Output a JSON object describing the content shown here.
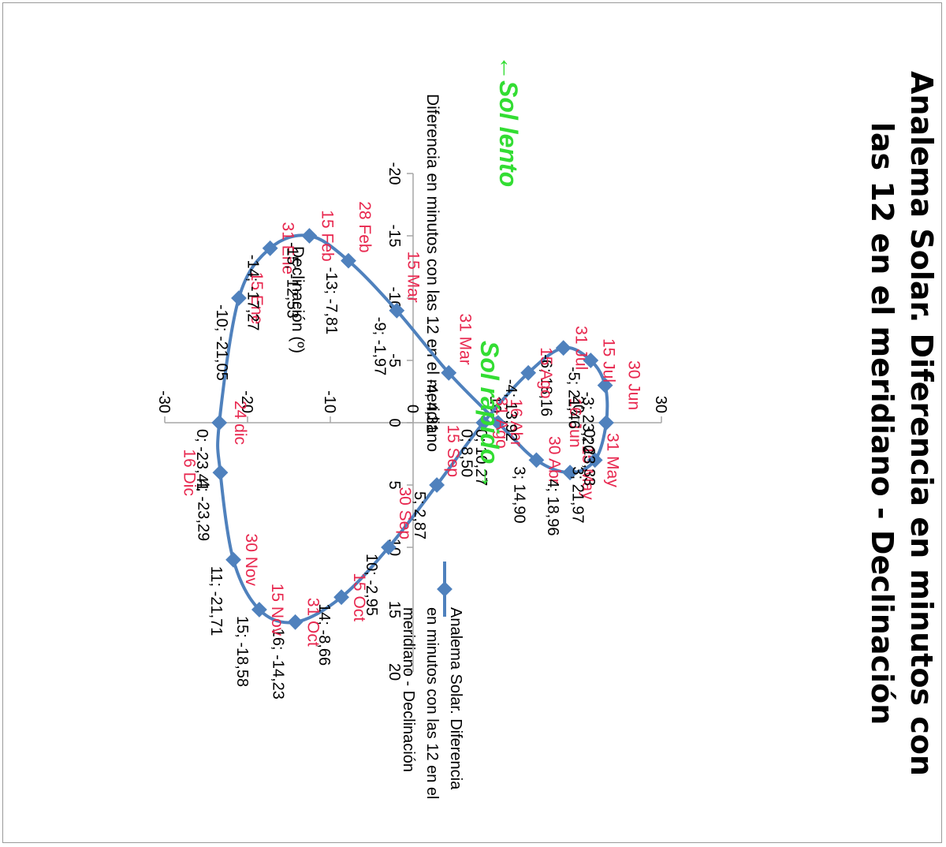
{
  "chart_data": {
    "type": "scatter",
    "title_lines": [
      "Analema Solar. Diferencia en minutos con",
      "las 12 en el meridiano - Declinación"
    ],
    "xlabel": "Diferencia en minutos con las 12 en el meridiano",
    "ylabel": "Declinación (º)",
    "xlim": [
      -20,
      20
    ],
    "ylim": [
      -30,
      30
    ],
    "xticks": [
      "-20",
      "-15",
      "-10",
      "-5",
      "0",
      "5",
      "10",
      "15",
      "20"
    ],
    "yticks": [
      "-30",
      "-20",
      "-10",
      "0",
      "10",
      "20",
      "30"
    ],
    "series": [
      {
        "name": "Analema Solar. Diferencia en minutos con las 12 en el meridiano - Declinación",
        "color": "#4f81bd",
        "points": [
          {
            "x": 0,
            "y": -23.41,
            "value_label": "0; -23,41",
            "date": "24 dic"
          },
          {
            "x": -10,
            "y": -21.05,
            "value_label": "-10; -21,05",
            "date": "15 Ene"
          },
          {
            "x": -14,
            "y": -17.27,
            "value_label": "-14; -17,27",
            "date": "31 Ene"
          },
          {
            "x": -15,
            "y": -12.53,
            "value_label": "-15; -12,53",
            "date": "15 Feb"
          },
          {
            "x": -13,
            "y": -7.81,
            "value_label": "-13; -7,81",
            "date": "28 Feb"
          },
          {
            "x": -9,
            "y": -1.97,
            "value_label": "-9; -1,97",
            "date": "15 Mar"
          },
          {
            "x": -4,
            "y": 4.31,
            "value_label": "-4; 4,31",
            "date": "31 Mar"
          },
          {
            "x": 0,
            "y": 10.27,
            "value_label": "0; 10,27",
            "date": "16 Abr"
          },
          {
            "x": 3,
            "y": 14.9,
            "value_label": "3; 14,90",
            "date": "30 Abr"
          },
          {
            "x": 4,
            "y": 18.96,
            "value_label": "4; 18,96",
            "date": "15 May"
          },
          {
            "x": 3,
            "y": 21.97,
            "value_label": "3; 21,97",
            "date": "31 May"
          },
          {
            "x": 0,
            "y": 23.33,
            "value_label": "0; 23,33",
            "date": "16 Jun"
          },
          {
            "x": -3,
            "y": 23.2,
            "value_label": "-3; 23,20",
            "date": "30 Jun"
          },
          {
            "x": -5,
            "y": 21.46,
            "value_label": "-5; 21,46",
            "date": "15 Jul"
          },
          {
            "x": -6,
            "y": 18.16,
            "value_label": "-6; 18,16",
            "date": "31 Jul"
          },
          {
            "x": -4,
            "y": 13.92,
            "value_label": "-4; 13,92",
            "date": "15 Ago"
          },
          {
            "x": 0,
            "y": 8.5,
            "value_label": "0; 8,50",
            "date": "31 Ago"
          },
          {
            "x": 5,
            "y": 2.87,
            "value_label": "5; 2,87",
            "date": "15 Sep"
          },
          {
            "x": 10,
            "y": -2.95,
            "value_label": "10; -2,95",
            "date": "30 Sep"
          },
          {
            "x": 14,
            "y": -8.66,
            "value_label": "14; -8,66",
            "date": "15 Oct"
          },
          {
            "x": 16,
            "y": -14.23,
            "value_label": "16; -14,23",
            "date": "31 Oct"
          },
          {
            "x": 15,
            "y": -18.58,
            "value_label": "15; -18,58",
            "date": "15 Nov"
          },
          {
            "x": 11,
            "y": -21.71,
            "value_label": "11; -21,71",
            "date": "30 Nov"
          },
          {
            "x": 4,
            "y": -23.29,
            "value_label": "4; -23,29",
            "date": "16 Dic"
          }
        ]
      }
    ],
    "annotations": {
      "slow": "Sol lento",
      "fast": "Sol rápido"
    },
    "colors": {
      "series": "#4f81bd",
      "date_labels": "#e8284f",
      "annotations": "#33dd33",
      "axes": "#a6a6a6"
    },
    "grid": false,
    "legend_position": "right",
    "orientation": "rotated 90° clockwise"
  }
}
